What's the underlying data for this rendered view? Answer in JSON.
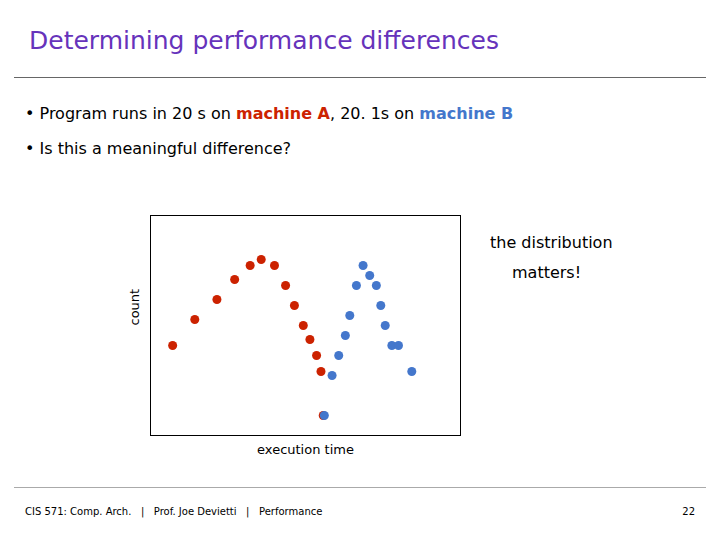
{
  "chart_data": {
    "type": "scatter",
    "title": "Determining performance differences",
    "title_color": "#6633bb",
    "bullets": [
      [
        {
          "text": "• Program runs in 20 s on ",
          "color": "black"
        },
        {
          "text": "machine A",
          "color": "#cc2200"
        },
        {
          "text": ", 20. 1s on ",
          "color": "black"
        },
        {
          "text": "machine B",
          "color": "#4477cc"
        }
      ],
      [
        {
          "text": "• Is this a meaningful difference?",
          "color": "black"
        }
      ]
    ],
    "xlabel": "execution time",
    "ylabel": "count",
    "annotations": [
      "the distribution",
      "matters!"
    ],
    "footer": "CIS 571: Comp. Arch.   |   Prof. Joe Devietti   |   Performance",
    "footer_page": "22",
    "series": [
      {
        "name": "machine A",
        "color": "#cc2200",
        "x": [
          1.0,
          2.0,
          3.0,
          3.8,
          4.5,
          5.0,
          5.6,
          6.1,
          6.5,
          6.9,
          7.2,
          7.5,
          7.7,
          7.8
        ],
        "values": [
          4.5,
          5.8,
          6.8,
          7.8,
          8.5,
          8.8,
          8.5,
          7.5,
          6.5,
          5.5,
          4.8,
          4.0,
          3.2,
          1.0
        ]
      },
      {
        "name": "machine B",
        "color": "#4477cc",
        "x": [
          7.85,
          8.2,
          8.5,
          8.8,
          9.0,
          9.3,
          9.6,
          9.9,
          10.2,
          10.4,
          10.6,
          10.9,
          11.2,
          11.8
        ],
        "values": [
          1.0,
          3.0,
          4.0,
          5.0,
          6.0,
          7.5,
          8.5,
          8.0,
          7.5,
          6.5,
          5.5,
          4.5,
          4.5,
          3.2
        ]
      }
    ],
    "xlim": [
      0,
      14
    ],
    "ylim": [
      0,
      11
    ],
    "xticks": [],
    "yticks": [],
    "tick_labels": false
  }
}
